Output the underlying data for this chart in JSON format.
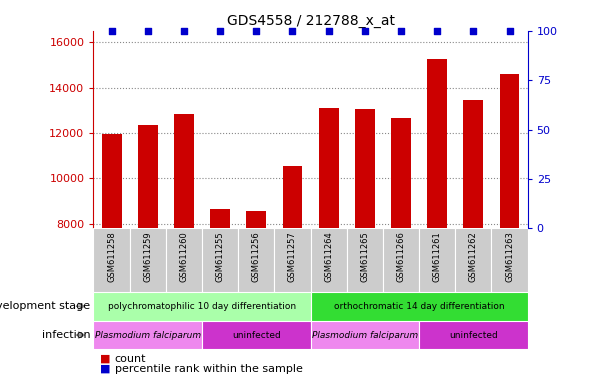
{
  "title": "GDS4558 / 212788_x_at",
  "samples": [
    "GSM611258",
    "GSM611259",
    "GSM611260",
    "GSM611255",
    "GSM611256",
    "GSM611257",
    "GSM611264",
    "GSM611265",
    "GSM611266",
    "GSM611261",
    "GSM611262",
    "GSM611263"
  ],
  "counts": [
    11950,
    12350,
    12850,
    8650,
    8580,
    10550,
    13100,
    13050,
    12650,
    15250,
    13450,
    14600
  ],
  "percentile_ranks": [
    100,
    100,
    100,
    100,
    100,
    100,
    100,
    100,
    100,
    100,
    100,
    100
  ],
  "bar_color": "#cc0000",
  "percentile_color": "#0000cc",
  "ylim_left": [
    7800,
    16500
  ],
  "ylim_right": [
    0,
    100
  ],
  "yticks_left": [
    8000,
    10000,
    12000,
    14000,
    16000
  ],
  "yticks_right": [
    0,
    25,
    50,
    75,
    100
  ],
  "dev_stage_groups": [
    {
      "label": "polychromatophilic 10 day differentiation",
      "start": 0,
      "end": 6,
      "color": "#aaffaa"
    },
    {
      "label": "orthochromatic 14 day differentiation",
      "start": 6,
      "end": 12,
      "color": "#33dd33"
    }
  ],
  "infection_groups": [
    {
      "label": "Plasmodium falciparum",
      "start": 0,
      "end": 3,
      "color": "#ee88ee"
    },
    {
      "label": "uninfected",
      "start": 3,
      "end": 6,
      "color": "#cc33cc"
    },
    {
      "label": "Plasmodium falciparum",
      "start": 6,
      "end": 9,
      "color": "#ee88ee"
    },
    {
      "label": "uninfected",
      "start": 9,
      "end": 12,
      "color": "#cc33cc"
    }
  ],
  "background_color": "#ffffff",
  "grid_color": "#888888",
  "left_axis_color": "#cc0000",
  "right_axis_color": "#0000cc",
  "bar_width": 0.55,
  "sample_bg_color": "#cccccc",
  "dev_label": "development stage",
  "inf_label": "infection",
  "legend_items": [
    {
      "color": "#cc0000",
      "label": "count"
    },
    {
      "color": "#0000cc",
      "label": "percentile rank within the sample"
    }
  ]
}
